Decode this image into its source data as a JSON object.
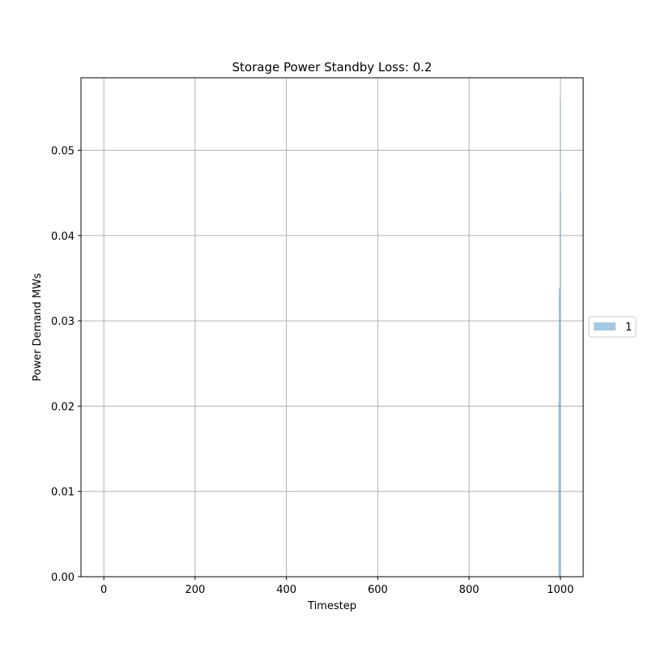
{
  "chart_data": {
    "type": "bar",
    "title": "Storage Power Standby Loss: 0.2",
    "xlabel": "Timestep",
    "ylabel": "Power Demand MWs",
    "xlim": [
      -50,
      1050
    ],
    "ylim": [
      0,
      0.0585
    ],
    "x_ticks": [
      0,
      200,
      400,
      600,
      800,
      1000
    ],
    "x_tick_labels": [
      "0",
      "200",
      "400",
      "600",
      "800",
      "1000"
    ],
    "y_ticks": [
      0,
      0.01,
      0.02,
      0.03,
      0.04,
      0.05
    ],
    "y_tick_labels": [
      "0.00",
      "0.01",
      "0.02",
      "0.03",
      "0.04",
      "0.05"
    ],
    "grid": true,
    "legend_position": "outside-right",
    "series": [
      {
        "name": "1",
        "color": "#1f77b4",
        "opacity": 0.4,
        "x": [
          996,
          997,
          998,
          999,
          1000
        ],
        "values": [
          0.0205,
          0.0338,
          0.0338,
          0.0449,
          0.0558
        ]
      }
    ]
  }
}
